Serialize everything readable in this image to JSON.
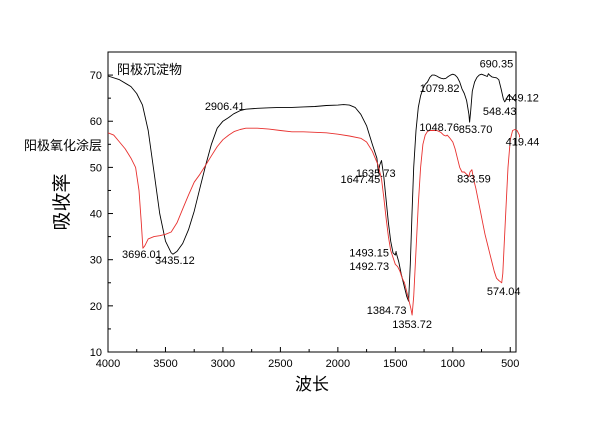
{
  "chart_data": {
    "type": "line",
    "xlabel": "波长",
    "ylabel": "吸收率",
    "xlim": [
      4000,
      450
    ],
    "ylim": [
      10,
      75
    ],
    "xticks": [
      4000,
      3500,
      3000,
      2500,
      2000,
      1500,
      1000,
      500
    ],
    "yticks": [
      10,
      20,
      30,
      40,
      50,
      60,
      70
    ],
    "grid": false,
    "colors": {
      "black_series": "#000000",
      "red_series": "#e8312f"
    },
    "series": [
      {
        "name": "阳极沉淀物",
        "color": "#000000",
        "x": [
          4000,
          3900,
          3800,
          3750,
          3700,
          3650,
          3600,
          3550,
          3500,
          3450,
          3435.12,
          3400,
          3350,
          3300,
          3250,
          3200,
          3150,
          3100,
          3050,
          3000,
          2950,
          2906.41,
          2850,
          2800,
          2700,
          2600,
          2500,
          2400,
          2300,
          2200,
          2100,
          2000,
          1950,
          1900,
          1850,
          1800,
          1750,
          1700,
          1660,
          1647.45,
          1635.73,
          1620,
          1600,
          1580,
          1560,
          1540,
          1520,
          1500,
          1493.15,
          1492.73,
          1470,
          1450,
          1420,
          1400,
          1384.73,
          1370,
          1355,
          1340,
          1320,
          1300,
          1280,
          1260,
          1240,
          1220,
          1200,
          1180,
          1160,
          1140,
          1120,
          1100,
          1079.82,
          1060,
          1040,
          1020,
          1000,
          980,
          960,
          940,
          920,
          900,
          880,
          860,
          853.7,
          845,
          830,
          810,
          790,
          770,
          750,
          730,
          710,
          700,
          690.35,
          680,
          660,
          640,
          620,
          600,
          580,
          560,
          548.43,
          540,
          520,
          500,
          480,
          460,
          449.12
        ],
        "y": [
          69.8,
          69.0,
          67.5,
          66.0,
          63.5,
          58.0,
          49.0,
          40.0,
          34.0,
          31.5,
          31.2,
          31.8,
          33.5,
          36.5,
          40.5,
          45.5,
          50.5,
          55.0,
          58.5,
          60.0,
          60.8,
          61.6,
          62.3,
          62.6,
          62.8,
          62.9,
          63.0,
          63.0,
          63.1,
          63.2,
          63.4,
          63.5,
          63.6,
          63.5,
          63.0,
          61.5,
          59.0,
          55.0,
          52.0,
          48.8,
          50.5,
          51.5,
          48.0,
          43.0,
          38.0,
          34.0,
          31.5,
          31.0,
          31.8,
          31.5,
          29.5,
          27.0,
          24.0,
          22.0,
          21.0,
          29.0,
          40.0,
          50.0,
          58.0,
          63.0,
          65.5,
          67.0,
          68.0,
          68.5,
          69.5,
          70.0,
          70.0,
          69.8,
          69.5,
          69.3,
          69.2,
          69.3,
          69.7,
          70.0,
          70.2,
          70.0,
          69.5,
          68.5,
          67.0,
          66.0,
          64.5,
          61.5,
          59.8,
          62.0,
          66.5,
          68.5,
          69.5,
          70.0,
          70.2,
          70.0,
          69.8,
          69.7,
          70.3,
          70.0,
          69.6,
          69.5,
          69.4,
          69.0,
          67.0,
          64.8,
          64.2,
          64.5,
          65.5,
          65.5,
          65.0,
          64.5,
          64.3
        ]
      },
      {
        "name": "阳极氧化涂层",
        "color": "#e8312f",
        "x": [
          4000,
          3950,
          3900,
          3850,
          3800,
          3760,
          3730,
          3710,
          3696.01,
          3680,
          3650,
          3600,
          3550,
          3500,
          3450,
          3400,
          3350,
          3300,
          3250,
          3200,
          3150,
          3100,
          3050,
          3000,
          2950,
          2900,
          2850,
          2800,
          2700,
          2600,
          2500,
          2400,
          2300,
          2200,
          2100,
          2000,
          1900,
          1800,
          1750,
          1700,
          1650,
          1620,
          1600,
          1580,
          1560,
          1540,
          1520,
          1500,
          1480,
          1460,
          1440,
          1420,
          1400,
          1380,
          1365,
          1353.72,
          1340,
          1320,
          1300,
          1280,
          1260,
          1240,
          1220,
          1200,
          1180,
          1160,
          1140,
          1120,
          1100,
          1080,
          1060,
          1048.76,
          1030,
          1000,
          980,
          960,
          940,
          920,
          900,
          880,
          860,
          850,
          833.59,
          820,
          800,
          780,
          760,
          740,
          720,
          700,
          680,
          660,
          640,
          620,
          600,
          585,
          574.04,
          565,
          555,
          540,
          520,
          500,
          480,
          460,
          440,
          420,
          419.44
        ],
        "y": [
          57.5,
          57.0,
          55.5,
          54.0,
          52.0,
          50.0,
          45.0,
          38.0,
          32.5,
          33.0,
          34.5,
          35.0,
          35.2,
          35.5,
          36.0,
          38.0,
          41.0,
          44.0,
          46.8,
          48.5,
          50.5,
          52.5,
          54.5,
          56.0,
          57.0,
          57.8,
          58.2,
          58.5,
          58.5,
          58.3,
          58.0,
          57.7,
          57.7,
          57.6,
          57.5,
          57.2,
          56.8,
          56.3,
          55.5,
          53.5,
          50.5,
          47.5,
          43.5,
          39.0,
          35.0,
          32.0,
          30.5,
          29.0,
          28.5,
          27.5,
          26.0,
          25.0,
          23.0,
          21.0,
          19.5,
          18.0,
          22.0,
          32.0,
          42.0,
          50.0,
          55.0,
          57.0,
          57.8,
          58.0,
          58.0,
          58.0,
          58.0,
          57.8,
          57.5,
          57.0,
          56.8,
          57.0,
          56.5,
          55.5,
          54.0,
          52.0,
          50.0,
          49.0,
          49.0,
          48.5,
          48.0,
          49.0,
          49.5,
          47.5,
          45.5,
          43.0,
          40.5,
          38.0,
          35.5,
          33.5,
          31.5,
          29.5,
          27.5,
          26.0,
          25.5,
          25.2,
          25.0,
          27.0,
          32.0,
          40.0,
          50.0,
          56.0,
          58.0,
          58.2,
          58.0,
          57.0,
          56.5
        ]
      }
    ],
    "annotations": [
      {
        "text": "2906.41",
        "x": 2906.41,
        "y": 61.6
      },
      {
        "text": "3696.01",
        "x": 3696.01,
        "y": 32.5
      },
      {
        "text": "3435.12",
        "x": 3435.12,
        "y": 31.2
      },
      {
        "text": "1635.73",
        "x": 1635.73,
        "y": 50.5
      },
      {
        "text": "1647.45",
        "x": 1647.45,
        "y": 48.8
      },
      {
        "text": "1493.15",
        "x": 1493.15,
        "y": 31.8
      },
      {
        "text": "1492.73",
        "x": 1492.73,
        "y": 31.5
      },
      {
        "text": "1384.73",
        "x": 1384.73,
        "y": 21.0
      },
      {
        "text": "1353.72",
        "x": 1353.72,
        "y": 18.0
      },
      {
        "text": "1079.82",
        "x": 1079.82,
        "y": 69.2
      },
      {
        "text": "853.70",
        "x": 853.7,
        "y": 59.8
      },
      {
        "text": "1048.76",
        "x": 1048.76,
        "y": 57.0
      },
      {
        "text": "833.59",
        "x": 833.59,
        "y": 49.5
      },
      {
        "text": "690.35",
        "x": 690.35,
        "y": 70.3
      },
      {
        "text": "548.43",
        "x": 548.43,
        "y": 64.2
      },
      {
        "text": "449.12",
        "x": 449.12,
        "y": 64.3
      },
      {
        "text": "419.44",
        "x": 419.44,
        "y": 56.5
      },
      {
        "text": "574.04",
        "x": 574.04,
        "y": 25.0
      }
    ]
  }
}
